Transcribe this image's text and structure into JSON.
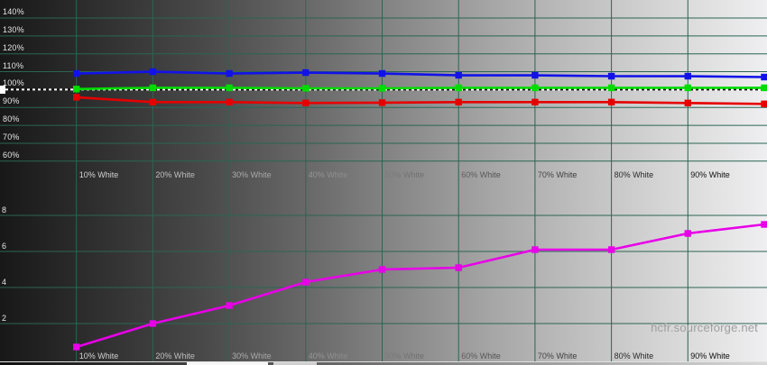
{
  "watermark": "hcfr.sourceforge.net",
  "colors": {
    "grid": "#2b6553",
    "background_left": "#181818",
    "background_right": "#efeff1",
    "axis_label": "#e4e4e4",
    "reference_dash_light": "#ffffff",
    "reference_dash_dark": "#141414",
    "red": "#e60000",
    "green": "#00dc00",
    "blue": "#1212e8",
    "magenta": "#e800e8"
  },
  "chart_data": {
    "type": "line",
    "title": "",
    "grid": true,
    "legend": "none",
    "x_values_percent": [
      10,
      20,
      30,
      40,
      50,
      60,
      70,
      80,
      90,
      100
    ],
    "x_tick_labels": [
      "10% White",
      "20% White",
      "30% White",
      "40% White",
      "50% White",
      "60% White",
      "70% White",
      "80% White",
      "90% White"
    ],
    "top_chart": {
      "ylabel": "RGB level (%)",
      "ylim": [
        55,
        145
      ],
      "ytick_values": [
        140,
        130,
        120,
        110,
        100,
        90,
        80,
        70,
        60
      ],
      "ytick_labels": [
        "140%",
        "130%",
        "120%",
        "110%",
        "100%",
        "90%",
        "80%",
        "70%",
        "60%"
      ],
      "reference_value": 100,
      "series": [
        {
          "name": "red-level",
          "color_key": "red",
          "values": [
            95.7,
            93,
            93,
            92.5,
            92.7,
            93,
            93,
            93,
            92.5,
            92
          ]
        },
        {
          "name": "green-level",
          "color_key": "green",
          "values": [
            100.3,
            101,
            101,
            100.7,
            100.7,
            101,
            101,
            101,
            101,
            101
          ]
        },
        {
          "name": "blue-level",
          "color_key": "blue",
          "values": [
            109,
            110,
            109,
            109.5,
            109,
            108,
            108,
            107.5,
            107.5,
            107
          ]
        }
      ]
    },
    "bottom_chart": {
      "ylabel": "Delta E",
      "ylim": [
        0,
        10
      ],
      "ytick_values": [
        8,
        6,
        4,
        2
      ],
      "ytick_labels": [
        "8",
        "6",
        "4",
        "2"
      ],
      "series": [
        {
          "name": "delta-e",
          "color_key": "magenta",
          "values": [
            0.7,
            2.0,
            3.0,
            4.3,
            5.0,
            5.1,
            6.1,
            6.1,
            7.0,
            7.5
          ]
        }
      ]
    }
  }
}
